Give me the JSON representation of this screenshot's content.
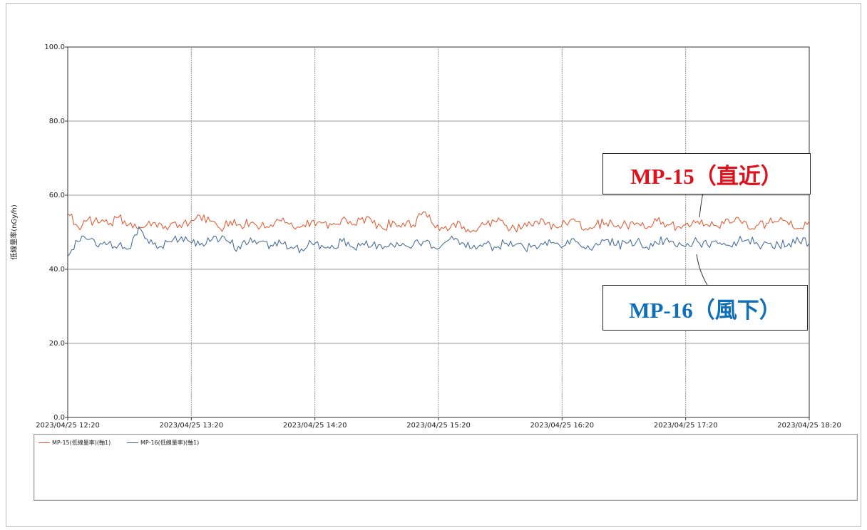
{
  "chart_data": {
    "type": "line",
    "ylabel": "低線量率(nGy/h)",
    "ylim": [
      0,
      100
    ],
    "y_ticks": [
      "0.0",
      "20.0",
      "40.0",
      "60.0",
      "80.0",
      "100.0"
    ],
    "x_ticks": [
      "2023/04/25 12:20",
      "2023/04/25 13:20",
      "2023/04/25 14:20",
      "2023/04/25 15:20",
      "2023/04/25 16:20",
      "2023/04/25 17:20",
      "2023/04/25 18:20"
    ],
    "x_range": [
      "2023/04/25 12:20",
      "2023/04/25 18:20"
    ],
    "sampling_minutes": 1,
    "grid": true,
    "legend_position": "bottom-left",
    "series": [
      {
        "name": "MP-15(低線量率)(軸1)",
        "color": "#e0603a",
        "start": "2023/04/25 12:20",
        "values_every_5_minutes": [
          55.0,
          51.5,
          53.5,
          52.5,
          52.0,
          54.0,
          52.0,
          51.0,
          53.0,
          52.5,
          51.5,
          52.0,
          52.5,
          54.5,
          53.0,
          51.0,
          53.0,
          52.0,
          52.5,
          51.5,
          52.0,
          53.0,
          52.5,
          51.5,
          53.0,
          52.5,
          52.0,
          53.5,
          52.0,
          54.0,
          52.5,
          51.0,
          53.0,
          52.5,
          52.0,
          55.5,
          52.0,
          51.0,
          52.5,
          51.5,
          50.5,
          52.0,
          53.0,
          52.0,
          51.0,
          52.5,
          53.0,
          52.0,
          51.5,
          52.5,
          53.0,
          51.0,
          52.0,
          52.5,
          51.5,
          52.0,
          52.5,
          51.0,
          53.0,
          52.0,
          51.5,
          52.5,
          53.0,
          52.0,
          51.5,
          53.5,
          54.0,
          51.0,
          52.0,
          52.5,
          53.0,
          52.0,
          51.0,
          53.0
        ],
        "visual_range": [
          49.5,
          55.5
        ]
      },
      {
        "name": "MP-16(低線量率)(軸1)",
        "color": "#4a6f9a",
        "start": "2023/04/25 12:20",
        "values_every_5_minutes": [
          43.5,
          47.5,
          48.0,
          46.0,
          47.0,
          46.5,
          45.5,
          51.5,
          47.0,
          46.0,
          47.5,
          48.0,
          47.5,
          46.5,
          47.5,
          48.0,
          47.0,
          45.5,
          48.5,
          47.5,
          46.5,
          47.0,
          46.0,
          45.5,
          47.0,
          46.5,
          46.5,
          47.5,
          46.0,
          47.0,
          46.5,
          45.5,
          46.5,
          47.0,
          46.5,
          47.5,
          46.0,
          47.0,
          48.0,
          47.0,
          46.5,
          47.0,
          46.0,
          47.0,
          46.5,
          45.5,
          46.5,
          47.5,
          47.0,
          46.5,
          47.5,
          45.5,
          47.0,
          48.0,
          46.5,
          47.0,
          47.5,
          46.0,
          47.0,
          48.5,
          46.0,
          47.0,
          47.5,
          46.5,
          47.0,
          46.5,
          47.5,
          48.0,
          46.5,
          47.0,
          46.5,
          47.0,
          47.5,
          47.0
        ],
        "visual_range": [
          43.5,
          51.5
        ]
      }
    ],
    "annotations": [
      {
        "text": "MP-15（直近）",
        "color": "#e0111b",
        "target": "MP-15"
      },
      {
        "text": "MP-16（風下）",
        "color": "#0f6fb8",
        "target": "MP-16"
      }
    ]
  }
}
